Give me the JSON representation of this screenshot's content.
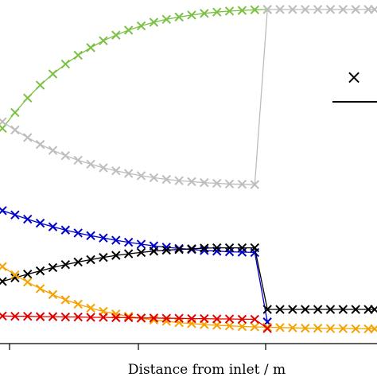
{
  "chart_data": {
    "type": "line",
    "title": "",
    "xlabel": "Distance from inlet / m",
    "ylabel": "",
    "xlim": [
      0,
      2.95
    ],
    "ylim": [
      0,
      1.0
    ],
    "grid": false,
    "legend_visible_fragment": {
      "marker": "×"
    },
    "series": [
      {
        "color": "#7ac143",
        "marker": "x",
        "x": [
          0,
          0.1,
          0.2,
          0.3,
          0.4,
          0.5,
          0.6,
          0.7,
          0.8,
          0.9,
          1.0,
          1.1,
          1.2,
          1.3,
          1.4,
          1.5,
          1.6,
          1.7,
          1.8,
          1.9,
          2.0,
          2.1
        ],
        "y": [
          0.62,
          0.668,
          0.712,
          0.751,
          0.785,
          0.815,
          0.842,
          0.865,
          0.886,
          0.903,
          0.918,
          0.931,
          0.942,
          0.951,
          0.958,
          0.964,
          0.969,
          0.973,
          0.976,
          0.978,
          0.98,
          0.981
        ]
      },
      {
        "color": "#bdbdbd",
        "marker": "x",
        "x": [
          0,
          0.1,
          0.2,
          0.3,
          0.4,
          0.5,
          0.6,
          0.7,
          0.8,
          0.9,
          1.0,
          1.1,
          1.2,
          1.3,
          1.4,
          1.5,
          1.6,
          1.7,
          1.8,
          1.9,
          2.0,
          2.1,
          2.2,
          2.3,
          2.4,
          2.5,
          2.6,
          2.7,
          2.8,
          2.9,
          2.95
        ],
        "y": [
          0.64,
          0.615,
          0.592,
          0.571,
          0.553,
          0.537,
          0.523,
          0.511,
          0.5,
          0.491,
          0.483,
          0.476,
          0.47,
          0.465,
          0.461,
          0.458,
          0.455,
          0.453,
          0.451,
          0.45,
          0.449,
          0.981,
          0.981,
          0.981,
          0.981,
          0.981,
          0.981,
          0.981,
          0.981,
          0.981,
          0.981
        ]
      },
      {
        "color": "#0000cc",
        "marker": "x",
        "x": [
          0,
          0.1,
          0.2,
          0.3,
          0.4,
          0.5,
          0.6,
          0.7,
          0.8,
          0.9,
          1.0,
          1.1,
          1.2,
          1.3,
          1.4,
          1.5,
          1.6,
          1.7,
          1.8,
          1.9,
          2.0,
          2.1
        ],
        "y": [
          0.37,
          0.357,
          0.344,
          0.332,
          0.321,
          0.311,
          0.302,
          0.294,
          0.287,
          0.28,
          0.274,
          0.268,
          0.263,
          0.259,
          0.255,
          0.252,
          0.249,
          0.247,
          0.245,
          0.244,
          0.243,
          0.032
        ]
      },
      {
        "color": "#000000",
        "marker": "x",
        "x": [
          0,
          0.1,
          0.2,
          0.3,
          0.4,
          0.5,
          0.6,
          0.7,
          0.8,
          0.9,
          1.0,
          1.1,
          1.2,
          1.3,
          1.4,
          1.5,
          1.6,
          1.7,
          1.8,
          1.9,
          2.0,
          2.1,
          2.2,
          2.3,
          2.4,
          2.5,
          2.6,
          2.7,
          2.8,
          2.9,
          2.95
        ],
        "y": [
          0.155,
          0.166,
          0.177,
          0.187,
          0.197,
          0.206,
          0.214,
          0.221,
          0.228,
          0.234,
          0.239,
          0.243,
          0.247,
          0.25,
          0.252,
          0.254,
          0.256,
          0.257,
          0.257,
          0.257,
          0.257,
          0.07,
          0.07,
          0.07,
          0.07,
          0.07,
          0.07,
          0.07,
          0.07,
          0.07,
          0.07
        ]
      },
      {
        "color": "#f5a200",
        "marker": "x",
        "x": [
          0,
          0.1,
          0.2,
          0.3,
          0.4,
          0.5,
          0.6,
          0.7,
          0.8,
          0.9,
          1.0,
          1.1,
          1.2,
          1.3,
          1.4,
          1.5,
          1.6,
          1.7,
          1.8,
          1.9,
          2.0,
          2.1,
          2.2,
          2.3,
          2.4,
          2.5,
          2.6,
          2.7,
          2.8,
          2.9,
          2.95
        ],
        "y": [
          0.2,
          0.175,
          0.153,
          0.133,
          0.115,
          0.099,
          0.086,
          0.074,
          0.064,
          0.056,
          0.049,
          0.043,
          0.038,
          0.034,
          0.03,
          0.027,
          0.024,
          0.022,
          0.02,
          0.018,
          0.017,
          0.016,
          0.015,
          0.014,
          0.013,
          0.013,
          0.012,
          0.012,
          0.011,
          0.011,
          0.011
        ]
      },
      {
        "color": "#e00000",
        "marker": "x",
        "x": [
          0,
          0.1,
          0.2,
          0.3,
          0.4,
          0.5,
          0.6,
          0.7,
          0.8,
          0.9,
          1.0,
          1.1,
          1.2,
          1.3,
          1.4,
          1.5,
          1.6,
          1.7,
          1.8,
          1.9,
          2.0,
          2.1
        ],
        "y": [
          0.05,
          0.049,
          0.049,
          0.048,
          0.048,
          0.047,
          0.047,
          0.046,
          0.046,
          0.045,
          0.045,
          0.044,
          0.044,
          0.043,
          0.043,
          0.042,
          0.042,
          0.041,
          0.041,
          0.04,
          0.04,
          0.012
        ]
      }
    ]
  }
}
